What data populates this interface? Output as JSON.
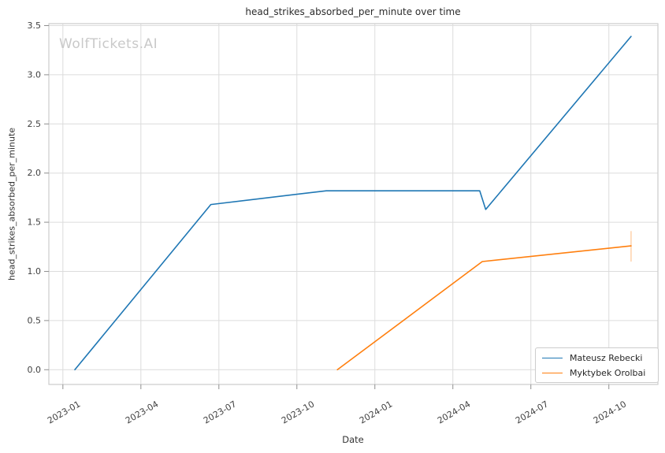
{
  "watermark": {
    "text": "WolfTickets.AI",
    "color": "#c9c9c9"
  },
  "colors": {
    "background": "#ffffff",
    "grid": "#dcdcdc",
    "spine": "#cccccc",
    "tick_mark": "#8f8f8f",
    "tick_label": "#404040",
    "title": "#2b2b2b",
    "axis_label": "#333333",
    "legend_border": "#cccccc",
    "legend_text": "#262626"
  },
  "chart_data": {
    "type": "line",
    "title": "head_strikes_absorbed_per_minute over time",
    "xlabel": "Date",
    "ylabel": "head_strikes_absorbed_per_minute",
    "grid": true,
    "legend_position": "lower right",
    "xlim": [
      "2022-12-15",
      "2024-11-28"
    ],
    "ylim": [
      -0.15,
      3.52
    ],
    "x_tick_labels": [
      "2023-01",
      "2023-04",
      "2023-07",
      "2023-10",
      "2024-01",
      "2024-04",
      "2024-07",
      "2024-10"
    ],
    "y_tick_labels": [
      "0.0",
      "0.5",
      "1.0",
      "1.5",
      "2.0",
      "2.5",
      "3.0",
      "3.5"
    ],
    "series": [
      {
        "name": "Mateusz Rebecki",
        "color": "#1f77b4",
        "points": [
          {
            "date": "2023-01-15",
            "value": 0.0
          },
          {
            "date": "2023-06-22",
            "value": 1.68
          },
          {
            "date": "2023-11-05",
            "value": 1.82
          },
          {
            "date": "2024-05-02",
            "value": 1.82
          },
          {
            "date": "2024-05-09",
            "value": 1.63
          },
          {
            "date": "2024-10-27",
            "value": 3.39
          }
        ]
      },
      {
        "name": "Myktybek Orolbai",
        "color": "#ff7f0e",
        "points": [
          {
            "date": "2023-11-18",
            "value": 0.0
          },
          {
            "date": "2024-05-05",
            "value": 1.1
          },
          {
            "date": "2024-10-27",
            "value": 1.26
          }
        ],
        "error_bars": [
          {
            "date": "2024-10-27",
            "low": 1.1,
            "high": 1.41
          }
        ]
      }
    ]
  }
}
